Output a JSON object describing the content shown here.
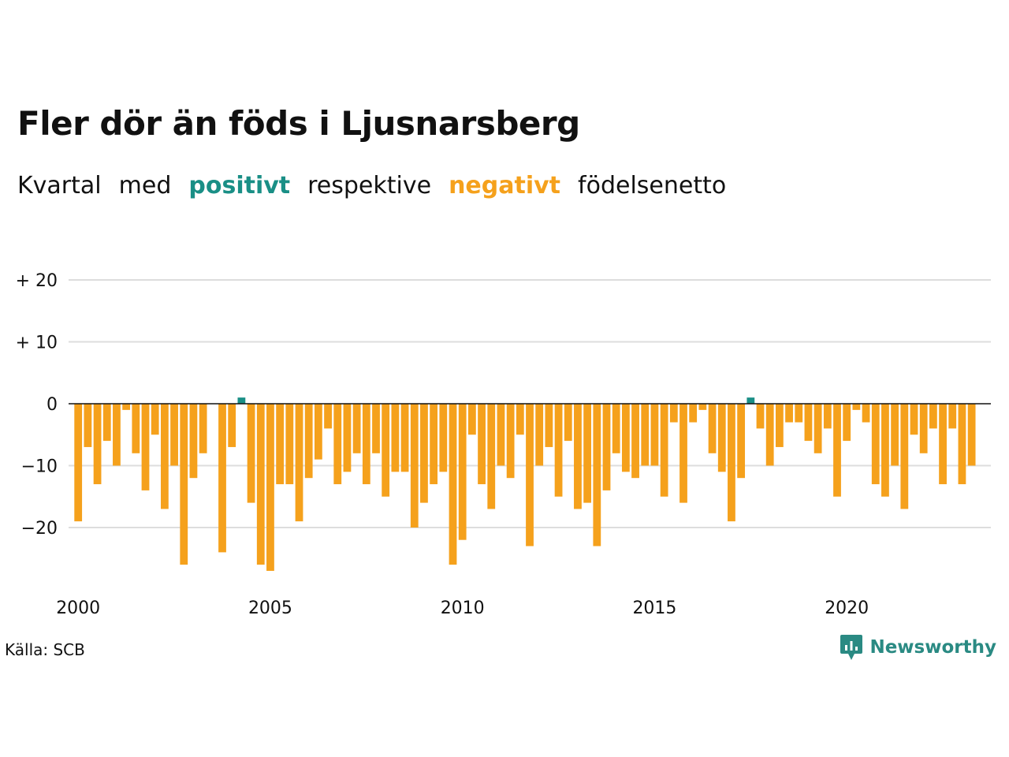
{
  "title": "Fler dör än föds i Ljusnarsberg",
  "subtitle": {
    "word1": "Kvartal",
    "word2": "med",
    "positive": "positivt",
    "word3": "respektive",
    "negative": "negativt",
    "word4": "födelsenetto"
  },
  "source": "Källa: SCB",
  "brand": "Newsworthy",
  "colors": {
    "positive": "#1a8f86",
    "negative": "#f5a11c",
    "grid": "#dddddd",
    "zero_line": "#111111",
    "text": "#111111"
  },
  "chart_data": {
    "type": "bar",
    "title": "Fler dör än föds i Ljusnarsberg",
    "x_start": 2000.0,
    "x_step": 0.25,
    "xlim": [
      1999.75,
      2023.75
    ],
    "x_ticks": [
      2000,
      2005,
      2010,
      2015,
      2020
    ],
    "x_tick_labels": [
      "2000",
      "2005",
      "2010",
      "2015",
      "2020"
    ],
    "ylim": [
      -27,
      22
    ],
    "y_ticks": [
      20,
      10,
      0,
      -10,
      -20
    ],
    "y_tick_labels": [
      "+ 20",
      "+ 10",
      "0",
      "−10",
      "−20"
    ],
    "grid": true,
    "values": [
      -19,
      -7,
      -13,
      -6,
      -10,
      -1,
      -8,
      -14,
      -5,
      -17,
      -10,
      -26,
      -12,
      -8,
      0,
      -24,
      -7,
      1,
      -16,
      -26,
      -27,
      -13,
      -13,
      -19,
      -12,
      -9,
      -4,
      -13,
      -11,
      -8,
      -13,
      -8,
      -15,
      -11,
      -11,
      -20,
      -16,
      -13,
      -11,
      -26,
      -22,
      -5,
      -13,
      -17,
      -10,
      -12,
      -5,
      -23,
      -10,
      -7,
      -15,
      -6,
      -17,
      -16,
      -23,
      -14,
      -8,
      -11,
      -12,
      -10,
      -10,
      -15,
      -3,
      -16,
      -3,
      -1,
      -8,
      -11,
      -19,
      -12,
      1,
      -4,
      -10,
      -7,
      -3,
      -3,
      -6,
      -8,
      -4,
      -15,
      -6,
      -1,
      -3,
      -13,
      -15,
      -10,
      -17,
      -5,
      -8,
      -4,
      -13,
      -4,
      -13,
      -10
    ]
  }
}
